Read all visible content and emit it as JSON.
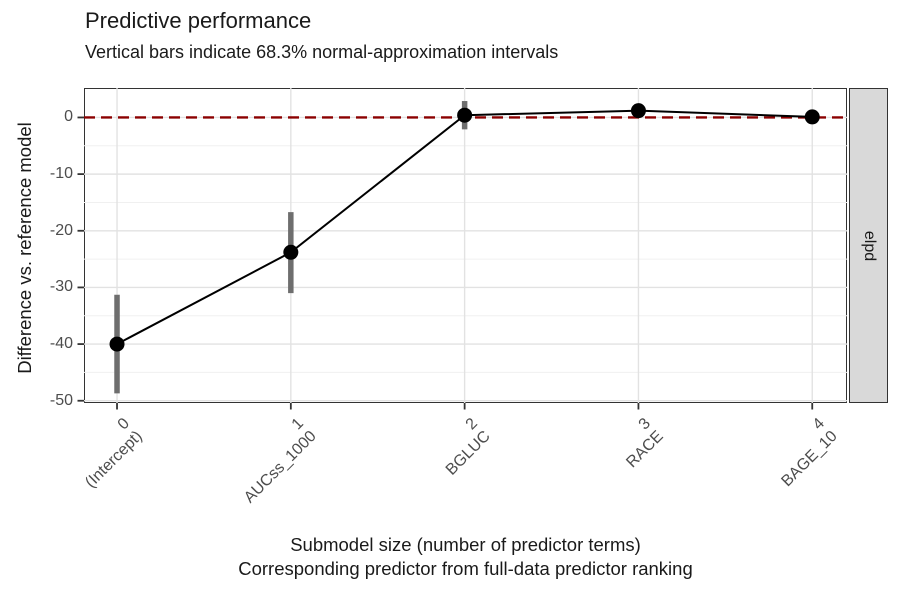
{
  "title": "Predictive performance",
  "subtitle": "Vertical bars indicate 68.3% normal-approximation intervals",
  "strip_label": "elpd",
  "axes": {
    "y_label": "Difference vs. reference model",
    "x_label_line1": "Submodel size (number of predictor terms)",
    "x_label_line2": "Corresponding predictor from full-data predictor ranking"
  },
  "chart_data": {
    "type": "line",
    "title": "Predictive performance",
    "subtitle": "Vertical bars indicate 68.3% normal-approximation intervals",
    "xlabel": "Submodel size (number of predictor terms) / Corresponding predictor from full-data predictor ranking",
    "ylabel": "Difference vs. reference model",
    "facet_label": "elpd",
    "x": [
      0,
      1,
      2,
      3,
      4
    ],
    "x_tick_labels": [
      {
        "size": "0",
        "predictor": "(Intercept)"
      },
      {
        "size": "1",
        "predictor": "AUCss_1000"
      },
      {
        "size": "2",
        "predictor": "BGLUC"
      },
      {
        "size": "3",
        "predictor": "RACE"
      },
      {
        "size": "4",
        "predictor": "BAGE_10"
      }
    ],
    "series": [
      {
        "name": "elpd difference vs. reference model",
        "values": [
          -40.0,
          -23.8,
          0.4,
          1.2,
          0.1
        ],
        "ci_lower": [
          -48.7,
          -31.0,
          -2.1,
          0.0,
          -1.1
        ],
        "ci_upper": [
          -31.3,
          -16.7,
          2.9,
          2.4,
          1.3
        ]
      }
    ],
    "reference_line": {
      "y": 0,
      "style": "dashed"
    },
    "ylim": [
      -50.4,
      5.2
    ],
    "xlim": [
      -0.19,
      4.2
    ],
    "yticks_major": [
      0,
      -10,
      -20,
      -30,
      -40,
      -50
    ],
    "yticks_minor": [
      -5,
      -15,
      -25,
      -35,
      -45
    ],
    "grid": "major-and-minor horizontal, major vertical",
    "legend_position": "none",
    "style": {
      "reference_line_color": "#8B0000",
      "line_color": "#000000",
      "point_color": "#000000",
      "errorbar_color": "#6e6e6e",
      "grid_major_color": "#e2e2e2",
      "grid_minor_color": "#f0f0f0",
      "panel_border_color": "#333333",
      "strip_background": "#d9d9d9",
      "tick_label_color": "#4d4d4d"
    }
  }
}
